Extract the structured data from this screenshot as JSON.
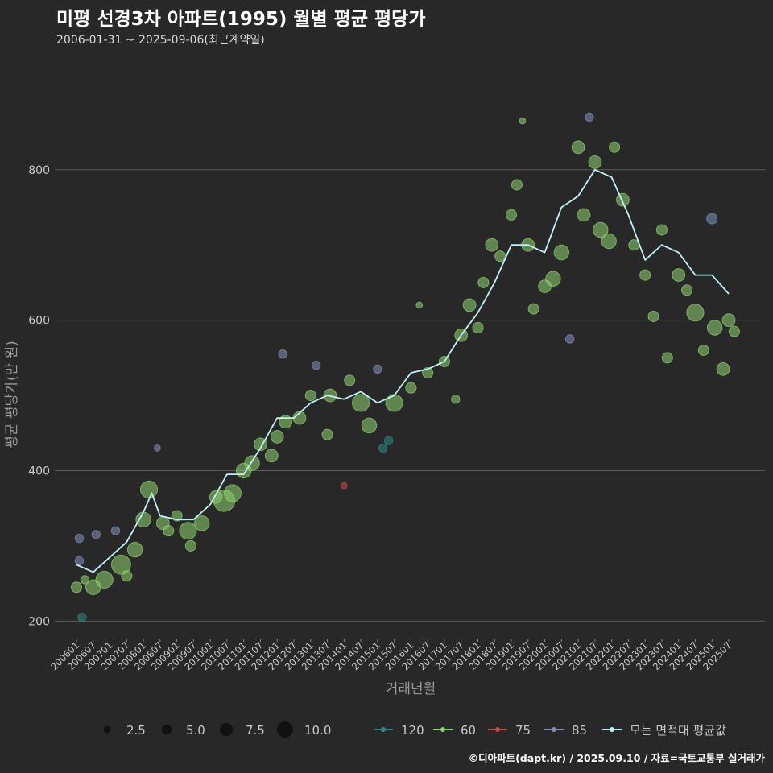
{
  "header": {
    "title": "미평 선경3차 아파트(1995) 월별 평균 평당가",
    "subtitle": "2006-01-31 ~ 2025-09-06(최근계약일)"
  },
  "footer": {
    "credit": "©디아파트(dapt.kr) / 2025.09.10 / 자료=국토교통부 실거래가"
  },
  "chart_data": {
    "type": "scatter",
    "xlabel": "거래년월",
    "ylabel": "평균 평당가(만 원)",
    "ylim": [
      180,
      940
    ],
    "yticks": [
      200,
      400,
      600,
      800
    ],
    "xticks": [
      "200601",
      "200607",
      "200701",
      "200707",
      "200801",
      "200807",
      "200901",
      "200907",
      "201001",
      "201007",
      "201101",
      "201107",
      "201201",
      "201207",
      "201301",
      "201307",
      "201401",
      "201407",
      "201501",
      "201507",
      "201601",
      "201607",
      "201701",
      "201707",
      "201801",
      "201807",
      "201901",
      "201907",
      "202001",
      "202007",
      "202101",
      "202107",
      "202201",
      "202207",
      "202301",
      "202307",
      "202401",
      "202407",
      "202501",
      "202507"
    ],
    "grid": "horizontal",
    "colors": {
      "background": "#282828",
      "grid": "#5a5a5a",
      "area_120": "#2e8b80",
      "area_60": "#8fd16f",
      "area_75": "#c9484b",
      "area_85": "#7f8fb8",
      "avg_line": "#bdf2f6"
    },
    "size_legend": {
      "labels": [
        "2.5",
        "5.0",
        "7.5",
        "10.0"
      ],
      "values": [
        2.5,
        5.0,
        7.5,
        10.0
      ]
    },
    "color_legend": [
      {
        "name": "120",
        "color": "#2e8b80"
      },
      {
        "name": "60",
        "color": "#8fd16f"
      },
      {
        "name": "75",
        "color": "#c9484b"
      },
      {
        "name": "85",
        "color": "#7f8fb8"
      },
      {
        "name": "모든 면적대 평균값",
        "color": "#bdf2f6"
      }
    ],
    "avg_series": {
      "name": "모든 면적대 평균값",
      "x": [
        "2006-01",
        "2006-07",
        "2007-01",
        "2007-07",
        "2008-01",
        "2008-04",
        "2008-07",
        "2009-01",
        "2009-07",
        "2010-01",
        "2010-07",
        "2011-01",
        "2011-07",
        "2012-01",
        "2012-07",
        "2013-01",
        "2013-07",
        "2014-01",
        "2014-07",
        "2015-01",
        "2015-07",
        "2016-01",
        "2016-07",
        "2017-01",
        "2017-07",
        "2018-01",
        "2018-07",
        "2019-01",
        "2019-07",
        "2020-01",
        "2020-07",
        "2021-01",
        "2021-07",
        "2022-01",
        "2022-07",
        "2023-01",
        "2023-07",
        "2024-01",
        "2024-07",
        "2025-01",
        "2025-07"
      ],
      "y": [
        275,
        265,
        285,
        305,
        345,
        370,
        340,
        335,
        335,
        355,
        395,
        395,
        430,
        470,
        470,
        490,
        500,
        495,
        505,
        490,
        500,
        530,
        535,
        545,
        580,
        610,
        650,
        700,
        700,
        690,
        750,
        765,
        800,
        790,
        740,
        680,
        700,
        690,
        660,
        660,
        635
      ]
    },
    "points": [
      {
        "x": "2006-01",
        "y": 245,
        "size": 3,
        "area": "60"
      },
      {
        "x": "2006-02",
        "y": 280,
        "size": 2,
        "area": "85"
      },
      {
        "x": "2006-02",
        "y": 310,
        "size": 2,
        "area": "85"
      },
      {
        "x": "2006-03",
        "y": 205,
        "size": 2,
        "area": "120"
      },
      {
        "x": "2006-04",
        "y": 255,
        "size": 2,
        "area": "60"
      },
      {
        "x": "2006-07",
        "y": 245,
        "size": 5,
        "area": "60"
      },
      {
        "x": "2006-08",
        "y": 315,
        "size": 2,
        "area": "85"
      },
      {
        "x": "2006-11",
        "y": 255,
        "size": 6,
        "area": "60"
      },
      {
        "x": "2007-03",
        "y": 320,
        "size": 2,
        "area": "85"
      },
      {
        "x": "2007-05",
        "y": 275,
        "size": 7,
        "area": "60"
      },
      {
        "x": "2007-07",
        "y": 260,
        "size": 3,
        "area": "60"
      },
      {
        "x": "2007-10",
        "y": 295,
        "size": 5,
        "area": "60"
      },
      {
        "x": "2008-01",
        "y": 335,
        "size": 5,
        "area": "60"
      },
      {
        "x": "2008-03",
        "y": 375,
        "size": 6,
        "area": "60"
      },
      {
        "x": "2008-06",
        "y": 430,
        "size": 1,
        "area": "85"
      },
      {
        "x": "2008-08",
        "y": 330,
        "size": 4,
        "area": "60"
      },
      {
        "x": "2008-10",
        "y": 320,
        "size": 3,
        "area": "60"
      },
      {
        "x": "2009-01",
        "y": 340,
        "size": 3,
        "area": "60"
      },
      {
        "x": "2009-05",
        "y": 320,
        "size": 6,
        "area": "60"
      },
      {
        "x": "2009-06",
        "y": 300,
        "size": 3,
        "area": "60"
      },
      {
        "x": "2009-10",
        "y": 330,
        "size": 5,
        "area": "60"
      },
      {
        "x": "2010-03",
        "y": 365,
        "size": 4,
        "area": "60"
      },
      {
        "x": "2010-06",
        "y": 360,
        "size": 8,
        "area": "60"
      },
      {
        "x": "2010-09",
        "y": 370,
        "size": 6,
        "area": "60"
      },
      {
        "x": "2011-01",
        "y": 400,
        "size": 5,
        "area": "60"
      },
      {
        "x": "2011-04",
        "y": 410,
        "size": 5,
        "area": "60"
      },
      {
        "x": "2011-07",
        "y": 435,
        "size": 4,
        "area": "60"
      },
      {
        "x": "2011-11",
        "y": 420,
        "size": 4,
        "area": "60"
      },
      {
        "x": "2012-01",
        "y": 445,
        "size": 4,
        "area": "60"
      },
      {
        "x": "2012-03",
        "y": 555,
        "size": 2,
        "area": "85"
      },
      {
        "x": "2012-04",
        "y": 465,
        "size": 4,
        "area": "60"
      },
      {
        "x": "2012-09",
        "y": 470,
        "size": 4,
        "area": "60"
      },
      {
        "x": "2013-01",
        "y": 500,
        "size": 3,
        "area": "60"
      },
      {
        "x": "2013-03",
        "y": 540,
        "size": 2,
        "area": "85"
      },
      {
        "x": "2013-07",
        "y": 448,
        "size": 3,
        "area": "60"
      },
      {
        "x": "2013-08",
        "y": 500,
        "size": 4,
        "area": "60"
      },
      {
        "x": "2014-01",
        "y": 380,
        "size": 1,
        "area": "75"
      },
      {
        "x": "2014-03",
        "y": 520,
        "size": 3,
        "area": "60"
      },
      {
        "x": "2014-07",
        "y": 490,
        "size": 6,
        "area": "60"
      },
      {
        "x": "2014-10",
        "y": 460,
        "size": 5,
        "area": "60"
      },
      {
        "x": "2015-01",
        "y": 535,
        "size": 2,
        "area": "85"
      },
      {
        "x": "2015-03",
        "y": 430,
        "size": 2,
        "area": "120"
      },
      {
        "x": "2015-05",
        "y": 440,
        "size": 2,
        "area": "120"
      },
      {
        "x": "2015-07",
        "y": 490,
        "size": 6,
        "area": "60"
      },
      {
        "x": "2016-01",
        "y": 510,
        "size": 3,
        "area": "60"
      },
      {
        "x": "2016-04",
        "y": 620,
        "size": 1,
        "area": "60"
      },
      {
        "x": "2016-07",
        "y": 530,
        "size": 3,
        "area": "60"
      },
      {
        "x": "2017-01",
        "y": 545,
        "size": 3,
        "area": "60"
      },
      {
        "x": "2017-05",
        "y": 495,
        "size": 2,
        "area": "60"
      },
      {
        "x": "2017-07",
        "y": 580,
        "size": 4,
        "area": "60"
      },
      {
        "x": "2017-10",
        "y": 620,
        "size": 4,
        "area": "60"
      },
      {
        "x": "2018-01",
        "y": 590,
        "size": 3,
        "area": "60"
      },
      {
        "x": "2018-03",
        "y": 650,
        "size": 3,
        "area": "60"
      },
      {
        "x": "2018-06",
        "y": 700,
        "size": 4,
        "area": "60"
      },
      {
        "x": "2018-09",
        "y": 685,
        "size": 3,
        "area": "60"
      },
      {
        "x": "2019-01",
        "y": 740,
        "size": 3,
        "area": "60"
      },
      {
        "x": "2019-03",
        "y": 780,
        "size": 3,
        "area": "60"
      },
      {
        "x": "2019-05",
        "y": 865,
        "size": 1,
        "area": "60"
      },
      {
        "x": "2019-07",
        "y": 700,
        "size": 4,
        "area": "60"
      },
      {
        "x": "2019-09",
        "y": 615,
        "size": 3,
        "area": "60"
      },
      {
        "x": "2020-01",
        "y": 645,
        "size": 4,
        "area": "60"
      },
      {
        "x": "2020-04",
        "y": 655,
        "size": 5,
        "area": "60"
      },
      {
        "x": "2020-07",
        "y": 690,
        "size": 5,
        "area": "60"
      },
      {
        "x": "2020-10",
        "y": 575,
        "size": 2,
        "area": "85"
      },
      {
        "x": "2021-01",
        "y": 830,
        "size": 4,
        "area": "60"
      },
      {
        "x": "2021-03",
        "y": 740,
        "size": 4,
        "area": "60"
      },
      {
        "x": "2021-05",
        "y": 870,
        "size": 2,
        "area": "85"
      },
      {
        "x": "2021-07",
        "y": 810,
        "size": 4,
        "area": "60"
      },
      {
        "x": "2021-09",
        "y": 720,
        "size": 5,
        "area": "60"
      },
      {
        "x": "2021-12",
        "y": 705,
        "size": 5,
        "area": "60"
      },
      {
        "x": "2022-02",
        "y": 830,
        "size": 3,
        "area": "60"
      },
      {
        "x": "2022-05",
        "y": 760,
        "size": 4,
        "area": "60"
      },
      {
        "x": "2022-09",
        "y": 700,
        "size": 3,
        "area": "60"
      },
      {
        "x": "2023-01",
        "y": 660,
        "size": 3,
        "area": "60"
      },
      {
        "x": "2023-04",
        "y": 605,
        "size": 3,
        "area": "60"
      },
      {
        "x": "2023-07",
        "y": 720,
        "size": 3,
        "area": "60"
      },
      {
        "x": "2023-09",
        "y": 550,
        "size": 3,
        "area": "60"
      },
      {
        "x": "2024-01",
        "y": 660,
        "size": 4,
        "area": "60"
      },
      {
        "x": "2024-04",
        "y": 640,
        "size": 3,
        "area": "60"
      },
      {
        "x": "2024-07",
        "y": 610,
        "size": 6,
        "area": "60"
      },
      {
        "x": "2024-10",
        "y": 560,
        "size": 3,
        "area": "60"
      },
      {
        "x": "2025-01",
        "y": 735,
        "size": 3,
        "area": "85"
      },
      {
        "x": "2025-02",
        "y": 590,
        "size": 5,
        "area": "60"
      },
      {
        "x": "2025-05",
        "y": 535,
        "size": 4,
        "area": "60"
      },
      {
        "x": "2025-07",
        "y": 600,
        "size": 4,
        "area": "60"
      },
      {
        "x": "2025-09",
        "y": 585,
        "size": 3,
        "area": "60"
      }
    ]
  }
}
